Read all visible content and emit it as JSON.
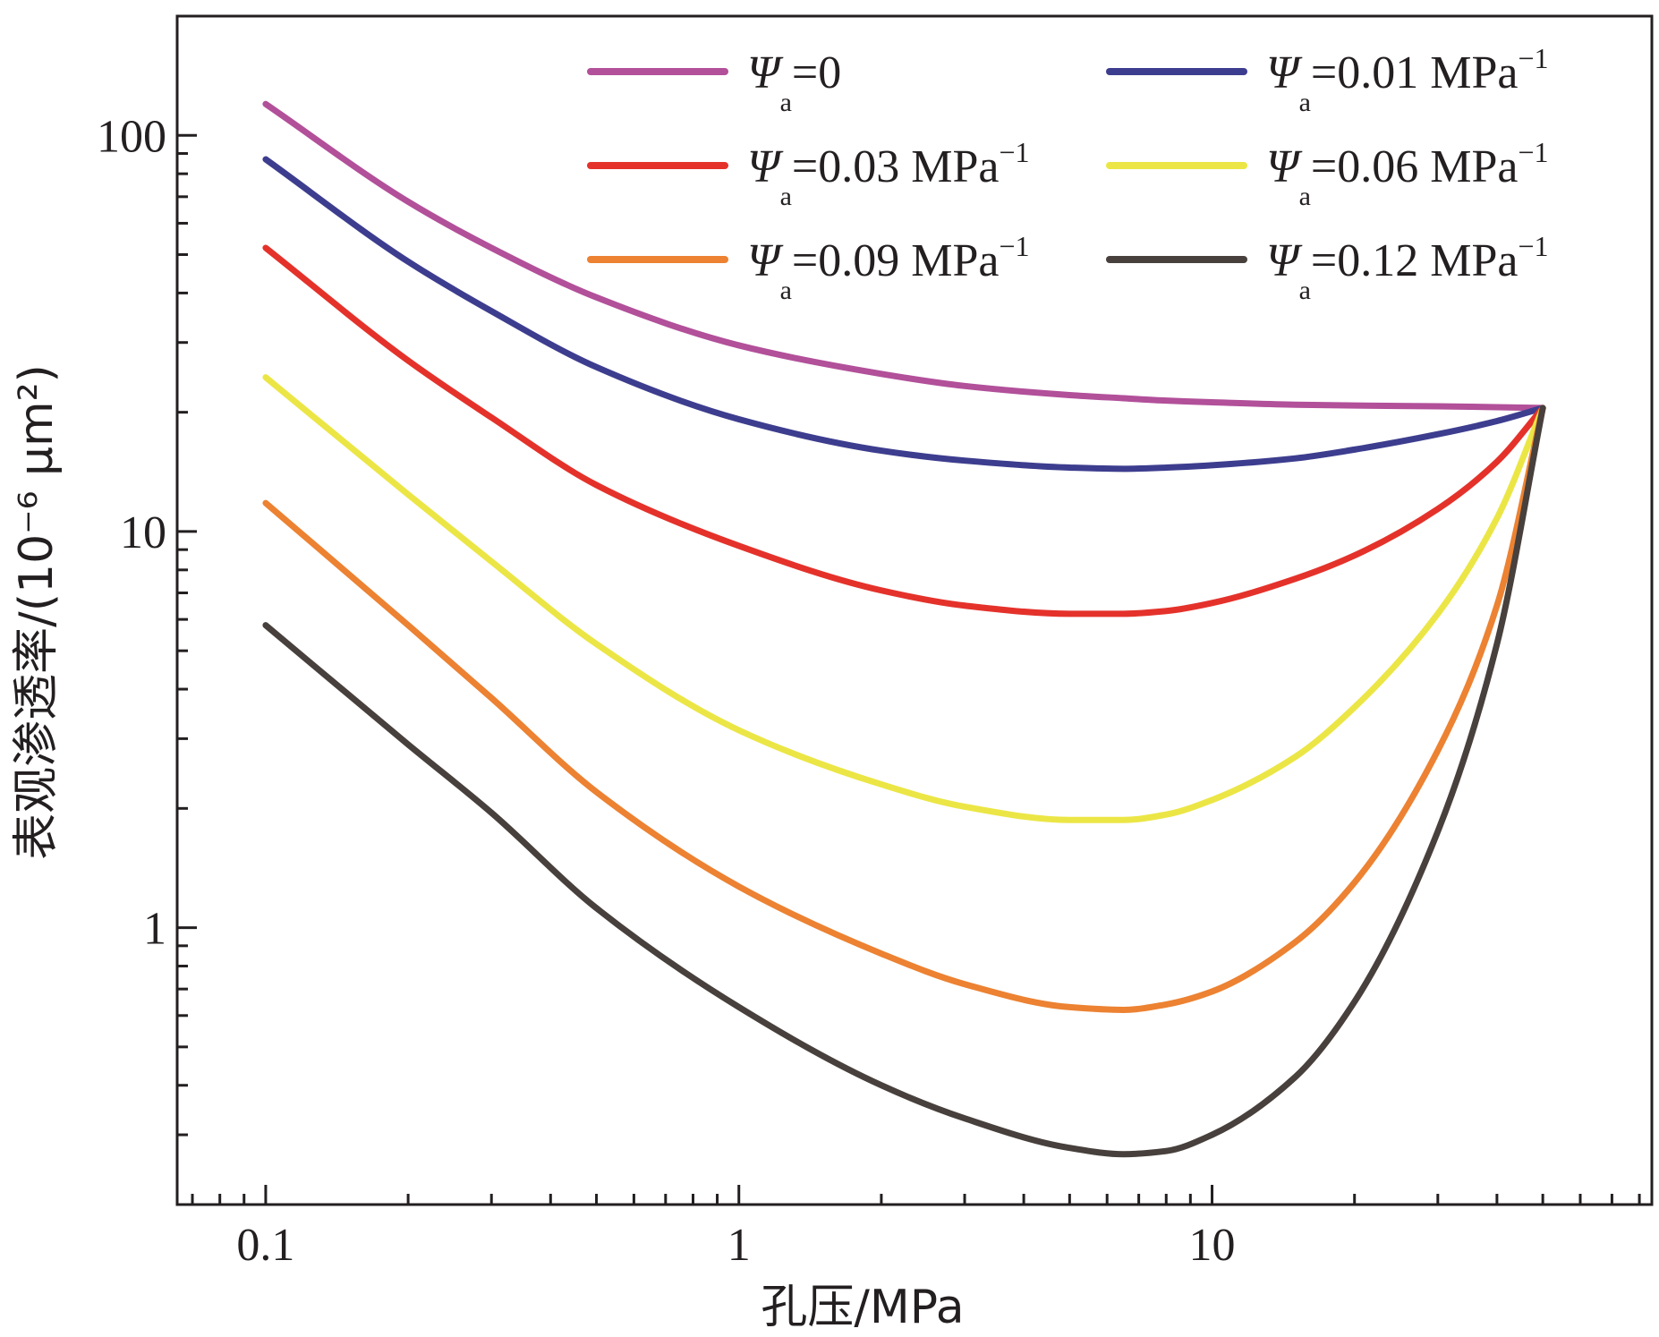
{
  "chart_data": {
    "type": "line",
    "title": "",
    "xlabel": "孔压/MPa",
    "ylabel": "表观渗透率/(10⁻⁶ μm²)",
    "x_scale": "log",
    "y_scale": "log",
    "xlim": [
      0.065,
      85
    ],
    "ylim": [
      0.2,
      200
    ],
    "x_ticks": [
      {
        "value": 0.1,
        "label": "0.1"
      },
      {
        "value": 1,
        "label": "1"
      },
      {
        "value": 10,
        "label": "10"
      }
    ],
    "y_ticks": [
      {
        "value": 1,
        "label": "1"
      },
      {
        "value": 10,
        "label": "10"
      },
      {
        "value": 100,
        "label": "100"
      }
    ],
    "grid": false,
    "legend_position": "top-right",
    "x": [
      0.1,
      0.2,
      0.3,
      0.5,
      1,
      2,
      3,
      5,
      6.5,
      8,
      10,
      15,
      20,
      30,
      40,
      50
    ],
    "series": [
      {
        "name": "Ψa=0",
        "symbol": "Ψ",
        "subscript": "a",
        "value_text": "=0",
        "unit": "",
        "sup": "",
        "color": "#b2509a",
        "values": [
          120,
          68,
          52,
          39,
          29.5,
          25,
          23.3,
          22.1,
          21.7,
          21.4,
          21.2,
          20.9,
          20.8,
          20.7,
          20.6,
          20.5
        ]
      },
      {
        "name": "Ψa=0.01 MPa⁻¹",
        "symbol": "Ψ",
        "subscript": "a",
        "value_text": "=0.01 ",
        "unit": "MPa",
        "sup": "−1",
        "color": "#3d3d8f",
        "values": [
          87,
          48,
          36,
          26,
          19.2,
          16,
          15.1,
          14.5,
          14.4,
          14.5,
          14.7,
          15.3,
          16.1,
          17.6,
          19.0,
          20.5
        ]
      },
      {
        "name": "Ψa=0.03 MPa⁻¹",
        "symbol": "Ψ",
        "subscript": "a",
        "value_text": "=0.03 ",
        "unit": "MPa",
        "sup": "−1",
        "color": "#e4322b",
        "values": [
          52,
          27,
          19.4,
          13.1,
          9.2,
          7.1,
          6.5,
          6.2,
          6.2,
          6.3,
          6.6,
          7.6,
          8.7,
          11.4,
          15.0,
          20.5
        ]
      },
      {
        "name": "Ψa=0.06 MPa⁻¹",
        "symbol": "Ψ",
        "subscript": "a",
        "value_text": "=0.06 ",
        "unit": "MPa",
        "sup": "−1",
        "color": "#ebe645",
        "values": [
          24.5,
          12.4,
          8.4,
          5.2,
          3.15,
          2.3,
          2.02,
          1.87,
          1.87,
          1.93,
          2.1,
          2.7,
          3.6,
          6.2,
          10.8,
          20.5
        ]
      },
      {
        "name": "Ψa=0.09 MPa⁻¹",
        "symbol": "Ψ",
        "subscript": "a",
        "value_text": "=0.09 ",
        "unit": "MPa",
        "sup": "−1",
        "color": "#ec8232",
        "values": [
          11.8,
          5.8,
          3.8,
          2.2,
          1.27,
          0.86,
          0.72,
          0.63,
          0.62,
          0.64,
          0.69,
          0.92,
          1.3,
          2.8,
          6.5,
          20.5
        ]
      },
      {
        "name": "Ψa=0.12 MPa⁻¹",
        "symbol": "Ψ",
        "subscript": "a",
        "value_text": "=0.12 ",
        "unit": "MPa",
        "sup": "−1",
        "color": "#47403c",
        "values": [
          5.8,
          2.9,
          1.95,
          1.12,
          0.63,
          0.4,
          0.33,
          0.278,
          0.268,
          0.273,
          0.3,
          0.42,
          0.65,
          1.75,
          5.2,
          20.5
        ]
      }
    ]
  }
}
